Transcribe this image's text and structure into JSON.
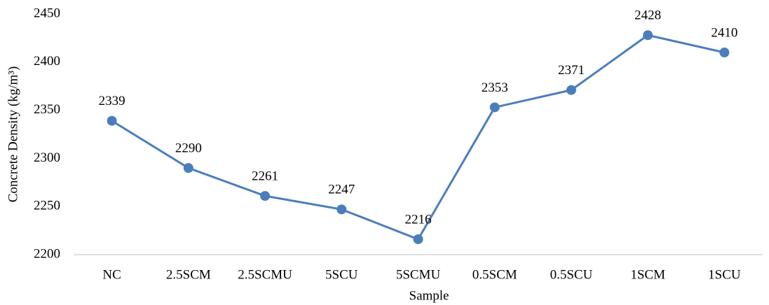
{
  "chart_data": {
    "type": "line",
    "x_label": "Sample",
    "y_label": "Concrete Density (kg/m³)",
    "categories": [
      "NC",
      "2.5SCM",
      "2.5SCMU",
      "5SCU",
      "5SCMU",
      "0.5SCM",
      "0.5SCU",
      "1SCM",
      "1SCU"
    ],
    "values": [
      2339,
      2290,
      2261,
      2247,
      2216,
      2353,
      2371,
      2428,
      2410
    ],
    "color": "#4a7ebb",
    "ylim": [
      2200,
      2450
    ],
    "yticks": [
      2200,
      2250,
      2300,
      2350,
      2400,
      2450
    ],
    "grid": false
  }
}
